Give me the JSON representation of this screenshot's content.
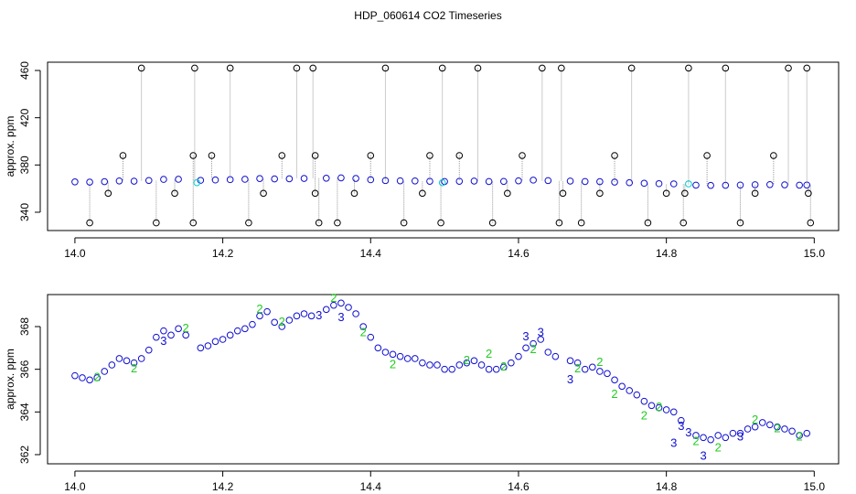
{
  "title": "HDP_060614  CO2 Timeseries",
  "chart_data": [
    {
      "type": "scatter",
      "ylabel": "approx. ppm",
      "xlim": [
        13.963,
        15.033
      ],
      "ylim": [
        324.5,
        467
      ],
      "xticks": [
        {
          "value": 14,
          "label": "14.0"
        },
        {
          "value": 14.2,
          "label": "14.2"
        },
        {
          "value": 14.4,
          "label": "14.4"
        },
        {
          "value": 14.6,
          "label": "14.6"
        },
        {
          "value": 14.8,
          "label": "14.8"
        },
        {
          "value": 15,
          "label": "15.0"
        }
      ],
      "yticks": [
        340,
        380,
        420,
        460
      ],
      "series": [
        {
          "color": "#1010d0",
          "marker": "circle",
          "x": [
            14.0,
            14.02,
            14.04,
            14.06,
            14.08,
            14.1,
            14.12,
            14.14,
            14.17,
            14.19,
            14.21,
            14.23,
            14.25,
            14.27,
            14.29,
            14.31,
            14.34,
            14.36,
            14.38,
            14.4,
            14.42,
            14.44,
            14.46,
            14.48,
            14.5,
            14.52,
            14.54,
            14.56,
            14.58,
            14.6,
            14.62,
            14.64,
            14.67,
            14.69,
            14.71,
            14.73,
            14.75,
            14.77,
            14.79,
            14.81,
            14.84,
            14.86,
            14.88,
            14.9,
            14.92,
            14.94,
            14.96,
            14.98,
            14.99
          ],
          "values": [
            365.7,
            365.5,
            365.9,
            366.5,
            366.3,
            366.9,
            367.8,
            367.9,
            367.0,
            367.3,
            367.6,
            367.9,
            368.5,
            368.2,
            368.3,
            368.6,
            368.8,
            369.1,
            368.6,
            367.5,
            366.8,
            366.6,
            366.5,
            366.2,
            366.0,
            366.2,
            366.4,
            366.0,
            366.1,
            366.6,
            367.2,
            366.8,
            366.4,
            366.0,
            365.9,
            365.5,
            365.0,
            364.5,
            364.2,
            364.0,
            362.9,
            362.7,
            362.8,
            363.0,
            363.3,
            363.4,
            363.2,
            362.9,
            363.0
          ]
        },
        {
          "color": "#000000",
          "marker": "circle",
          "drops": true,
          "x": [
            14.02,
            14.045,
            14.065,
            14.09,
            14.11,
            14.135,
            14.16,
            14.16,
            14.162,
            14.185,
            14.21,
            14.235,
            14.255,
            14.28,
            14.3,
            14.322,
            14.325,
            14.325,
            14.33,
            14.355,
            14.378,
            14.4,
            14.42,
            14.445,
            14.47,
            14.48,
            14.495,
            14.497,
            14.52,
            14.545,
            14.565,
            14.585,
            14.605,
            14.632,
            14.655,
            14.658,
            14.66,
            14.685,
            14.71,
            14.73,
            14.753,
            14.775,
            14.8,
            14.823,
            14.825,
            14.83,
            14.855,
            14.88,
            14.9,
            14.92,
            14.945,
            14.965,
            14.99,
            14.992,
            14.995
          ],
          "values": [
            331,
            356,
            388,
            462,
            331,
            356,
            331,
            388,
            462,
            388,
            462,
            331,
            356,
            388,
            462,
            462,
            388,
            356,
            331,
            331,
            356,
            388,
            462,
            331,
            356,
            388,
            331,
            462,
            388,
            462,
            331,
            356,
            388,
            462,
            331,
            462,
            356,
            331,
            356,
            388,
            462,
            331,
            356,
            331,
            356,
            462,
            388,
            462,
            331,
            356,
            388,
            462,
            462,
            356,
            331
          ]
        },
        {
          "color": "#00cccc",
          "marker": "circle",
          "x": [
            14.165,
            14.497,
            14.83
          ],
          "values": [
            365,
            365,
            364
          ]
        }
      ]
    },
    {
      "type": "scatter",
      "ylabel": "approx. ppm",
      "xlim": [
        13.963,
        15.033
      ],
      "ylim": [
        361.57,
        369.5
      ],
      "xticks": [
        {
          "value": 14,
          "label": "14.0"
        },
        {
          "value": 14.2,
          "label": "14.2"
        },
        {
          "value": 14.4,
          "label": "14.4"
        },
        {
          "value": 14.6,
          "label": "14.6"
        },
        {
          "value": 14.8,
          "label": "14.8"
        },
        {
          "value": 15,
          "label": "15.0"
        }
      ],
      "yticks": [
        362,
        364,
        366,
        368
      ],
      "series": [
        {
          "color": "#1010d0",
          "marker": "circle",
          "x": [
            14.0,
            14.01,
            14.02,
            14.03,
            14.04,
            14.05,
            14.06,
            14.07,
            14.08,
            14.09,
            14.1,
            14.11,
            14.12,
            14.13,
            14.14,
            14.15,
            14.17,
            14.18,
            14.19,
            14.2,
            14.21,
            14.22,
            14.23,
            14.24,
            14.25,
            14.26,
            14.27,
            14.28,
            14.29,
            14.3,
            14.31,
            14.32,
            14.34,
            14.35,
            14.36,
            14.37,
            14.38,
            14.39,
            14.4,
            14.41,
            14.42,
            14.43,
            14.44,
            14.45,
            14.46,
            14.47,
            14.48,
            14.49,
            14.5,
            14.51,
            14.52,
            14.53,
            14.54,
            14.55,
            14.56,
            14.57,
            14.58,
            14.59,
            14.6,
            14.61,
            14.62,
            14.63,
            14.64,
            14.65,
            14.67,
            14.68,
            14.69,
            14.7,
            14.71,
            14.72,
            14.73,
            14.74,
            14.75,
            14.76,
            14.77,
            14.78,
            14.79,
            14.8,
            14.81,
            14.82,
            14.84,
            14.85,
            14.86,
            14.87,
            14.88,
            14.89,
            14.9,
            14.91,
            14.92,
            14.93,
            14.94,
            14.95,
            14.96,
            14.97,
            14.98,
            14.99
          ],
          "values": [
            365.7,
            365.6,
            365.5,
            365.6,
            365.9,
            366.2,
            366.5,
            366.4,
            366.3,
            366.5,
            366.9,
            367.5,
            367.8,
            367.6,
            367.9,
            367.6,
            367.0,
            367.1,
            367.3,
            367.4,
            367.6,
            367.8,
            367.9,
            368.1,
            368.5,
            368.7,
            368.2,
            368.0,
            368.3,
            368.5,
            368.6,
            368.5,
            368.8,
            369.0,
            369.1,
            368.9,
            368.6,
            368.0,
            367.5,
            367.0,
            366.8,
            366.7,
            366.6,
            366.5,
            366.5,
            366.3,
            366.2,
            366.2,
            366.0,
            366.0,
            366.2,
            366.3,
            366.4,
            366.2,
            366.0,
            366.0,
            366.1,
            366.3,
            366.6,
            367.0,
            367.2,
            367.4,
            366.8,
            366.6,
            366.4,
            366.3,
            366.0,
            366.1,
            365.9,
            365.8,
            365.5,
            365.2,
            365.0,
            364.8,
            364.5,
            364.3,
            364.2,
            364.1,
            364.0,
            363.6,
            362.9,
            362.8,
            362.7,
            362.9,
            362.8,
            363.0,
            363.0,
            363.2,
            363.3,
            363.5,
            363.4,
            363.3,
            363.2,
            363.1,
            362.9,
            363.0
          ]
        },
        {
          "color": "#22cc22",
          "marker": "2",
          "x": [
            14.03,
            14.08,
            14.15,
            14.25,
            14.28,
            14.35,
            14.39,
            14.43,
            14.53,
            14.56,
            14.58,
            14.62,
            14.68,
            14.71,
            14.73,
            14.77,
            14.79,
            14.84,
            14.87,
            14.92,
            14.95,
            14.98
          ],
          "values": [
            365.6,
            366.0,
            367.9,
            368.8,
            368.2,
            369.3,
            367.7,
            366.2,
            366.4,
            366.7,
            366.1,
            366.9,
            366.0,
            366.3,
            364.8,
            363.8,
            364.2,
            362.6,
            362.3,
            363.6,
            363.2,
            362.8
          ]
        },
        {
          "color": "#1010d0",
          "marker": "3",
          "x": [
            14.12,
            14.33,
            14.36,
            14.61,
            14.63,
            14.67,
            14.81,
            14.82,
            14.83,
            14.85,
            14.9
          ],
          "values": [
            367.3,
            368.5,
            368.4,
            367.5,
            367.7,
            365.5,
            362.5,
            363.3,
            363.0,
            361.9,
            362.8
          ]
        }
      ]
    }
  ]
}
